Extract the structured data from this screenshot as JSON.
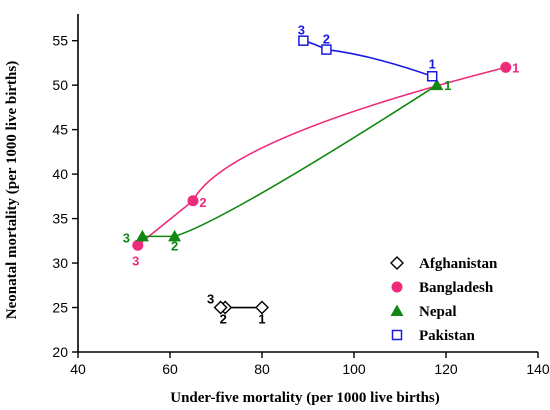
{
  "chart_data": {
    "type": "line",
    "xlabel": "Under-five mortality (per 1000 live births)",
    "ylabel": "Neonatal mortality (per 1000 live births)",
    "xlim": [
      40,
      140
    ],
    "ylim": [
      20,
      58
    ],
    "xticks": [
      "40",
      "60",
      "80",
      "100",
      "120",
      "140"
    ],
    "yticks": [
      "20",
      "25",
      "30",
      "35",
      "40",
      "45",
      "50",
      "55"
    ],
    "grid": false,
    "legend_position": "bottom-right",
    "series": [
      {
        "name": "Afghanistan",
        "color": "#000000",
        "marker": "diamond-open",
        "points": [
          {
            "x": 80,
            "y": 25,
            "label": "1"
          },
          {
            "x": 72,
            "y": 25,
            "label": "2"
          },
          {
            "x": 71,
            "y": 25,
            "label": "3"
          }
        ]
      },
      {
        "name": "Bangladesh",
        "color": "#ee2a7b",
        "marker": "circle",
        "points": [
          {
            "x": 133,
            "y": 52,
            "label": "1"
          },
          {
            "x": 65,
            "y": 37,
            "label": "2"
          },
          {
            "x": 53,
            "y": 32,
            "label": "3"
          }
        ]
      },
      {
        "name": "Nepal",
        "color": "#118811",
        "marker": "triangle",
        "points": [
          {
            "x": 118,
            "y": 50,
            "label": "1"
          },
          {
            "x": 61,
            "y": 33,
            "label": "2"
          },
          {
            "x": 54,
            "y": 33,
            "label": "3"
          }
        ]
      },
      {
        "name": "Pakistan",
        "color": "#1a1ae6",
        "marker": "square-open",
        "points": [
          {
            "x": 117,
            "y": 51,
            "label": "1"
          },
          {
            "x": 94,
            "y": 54,
            "label": "2"
          },
          {
            "x": 89,
            "y": 55,
            "label": "3"
          }
        ]
      }
    ]
  }
}
